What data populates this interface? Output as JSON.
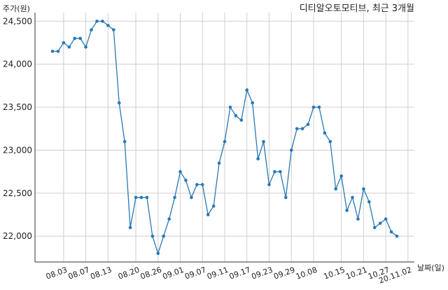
{
  "title": "디티알오토모티브, 최근 3개월",
  "ylabel": "주가(원)",
  "xlabel": "날짜(일)",
  "colors": {
    "line": "#2878b5",
    "grid": "#cfcfcf",
    "axis": "#333333"
  },
  "chart_data": {
    "type": "line",
    "title": "디티알오토모티브, 최근 3개월",
    "xlabel": "날짜(일)",
    "ylabel": "주가(원)",
    "ylim": [
      21700,
      24600
    ],
    "yticks": [
      22000,
      22500,
      23000,
      23500,
      24000,
      24500
    ],
    "ytick_labels": [
      "22,000",
      "22,500",
      "23,000",
      "23,500",
      "24,000",
      "24,500"
    ],
    "xtick_labels": [
      "08.03",
      "08.07",
      "08.13",
      "08.20",
      "08.26",
      "09.01",
      "09.07",
      "09.11",
      "09.17",
      "09.23",
      "09.29",
      "10.08",
      "10.15",
      "10.21",
      "10.27",
      "20.11.02"
    ],
    "xtick_index": [
      2,
      6,
      10,
      15,
      19,
      23,
      27,
      31,
      35,
      39,
      43,
      47,
      52,
      56,
      60,
      64
    ],
    "grid": true,
    "series": [
      {
        "values": [
          24150,
          24150,
          24250,
          24200,
          24300,
          24300,
          24200,
          24400,
          24500,
          24500,
          24450,
          24400,
          23550,
          23100,
          22100,
          22450,
          22450,
          22450,
          22000,
          21800,
          22000,
          22200,
          22450,
          22750,
          22650,
          22450,
          22600,
          22600,
          22250,
          22350,
          22850,
          23100,
          23500,
          23400,
          23350,
          23700,
          23550,
          22900,
          23100,
          22600,
          22750,
          22750,
          22450,
          23000,
          23250,
          23250,
          23300,
          23500,
          23500,
          23200,
          23100,
          22550,
          22700,
          22300,
          22450,
          22200,
          22550,
          22400,
          22100,
          22150,
          22200,
          22050,
          22000
        ]
      }
    ]
  }
}
